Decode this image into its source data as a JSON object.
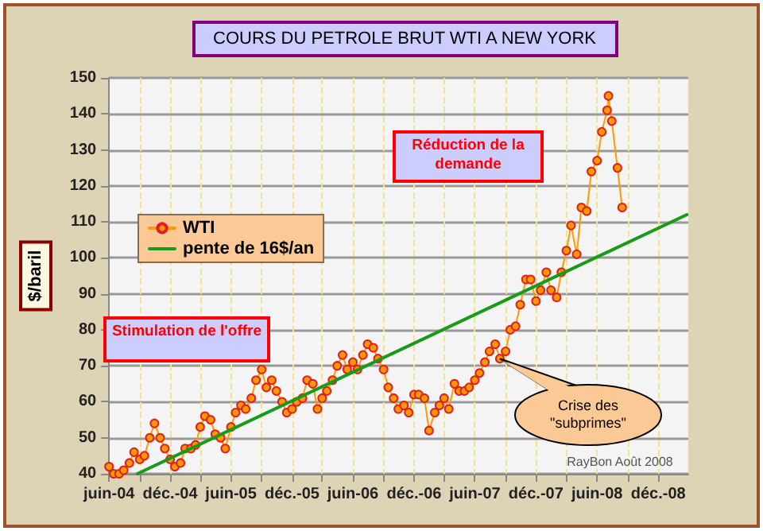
{
  "chart_data": {
    "type": "line",
    "title": "COURS DU PETROLE BRUT WTI A NEW YORK",
    "ylabel": "$/baril",
    "xlim": [
      "2004-06-01",
      "2009-03-01"
    ],
    "ylim": [
      40,
      150
    ],
    "yticks": [
      40,
      50,
      60,
      70,
      80,
      90,
      100,
      110,
      120,
      130,
      140,
      150
    ],
    "xticks": [
      {
        "value": "2004-06-01",
        "label": "juin-04"
      },
      {
        "value": "2004-09-01",
        "label": null
      },
      {
        "value": "2004-12-01",
        "label": "déc.-04"
      },
      {
        "value": "2005-03-01",
        "label": null
      },
      {
        "value": "2005-06-01",
        "label": "juin-05"
      },
      {
        "value": "2005-09-01",
        "label": null
      },
      {
        "value": "2005-12-01",
        "label": "déc.-05"
      },
      {
        "value": "2006-03-01",
        "label": null
      },
      {
        "value": "2006-06-01",
        "label": "juin-06"
      },
      {
        "value": "2006-09-01",
        "label": null
      },
      {
        "value": "2006-12-01",
        "label": "déc.-06"
      },
      {
        "value": "2007-03-01",
        "label": null
      },
      {
        "value": "2007-06-01",
        "label": "juin-07"
      },
      {
        "value": "2007-09-01",
        "label": null
      },
      {
        "value": "2007-12-01",
        "label": "déc.-07"
      },
      {
        "value": "2008-03-01",
        "label": null
      },
      {
        "value": "2008-06-01",
        "label": "juin-08"
      },
      {
        "value": "2008-09-01",
        "label": null
      },
      {
        "value": "2008-12-01",
        "label": "déc.-08"
      }
    ],
    "grid": true,
    "legend": "left",
    "series": [
      {
        "name": "WTI",
        "color": "#ff9900",
        "marker": "circle",
        "x": [
          "2004-06-01",
          "2004-06-15",
          "2004-07-01",
          "2004-07-15",
          "2004-08-01",
          "2004-08-15",
          "2004-09-01",
          "2004-09-15",
          "2004-10-01",
          "2004-10-15",
          "2004-11-01",
          "2004-11-15",
          "2004-12-01",
          "2004-12-15",
          "2005-01-01",
          "2005-01-15",
          "2005-02-01",
          "2005-02-15",
          "2005-03-01",
          "2005-03-15",
          "2005-04-01",
          "2005-04-15",
          "2005-05-01",
          "2005-05-15",
          "2005-06-01",
          "2005-06-15",
          "2005-07-01",
          "2005-07-15",
          "2005-08-01",
          "2005-08-15",
          "2005-09-01",
          "2005-09-15",
          "2005-10-01",
          "2005-10-15",
          "2005-11-01",
          "2005-11-15",
          "2005-12-01",
          "2005-12-15",
          "2006-01-01",
          "2006-01-15",
          "2006-02-01",
          "2006-02-15",
          "2006-03-01",
          "2006-03-15",
          "2006-04-01",
          "2006-04-15",
          "2006-05-01",
          "2006-05-15",
          "2006-06-01",
          "2006-06-15",
          "2006-07-01",
          "2006-07-15",
          "2006-08-01",
          "2006-08-15",
          "2006-09-01",
          "2006-09-15",
          "2006-10-01",
          "2006-10-15",
          "2006-11-01",
          "2006-11-15",
          "2006-12-01",
          "2006-12-15",
          "2007-01-01",
          "2007-01-15",
          "2007-02-01",
          "2007-02-15",
          "2007-03-01",
          "2007-03-15",
          "2007-04-01",
          "2007-04-15",
          "2007-05-01",
          "2007-05-15",
          "2007-06-01",
          "2007-06-15",
          "2007-07-01",
          "2007-07-15",
          "2007-08-01",
          "2007-08-15",
          "2007-09-01",
          "2007-09-15",
          "2007-10-01",
          "2007-10-15",
          "2007-11-01",
          "2007-11-15",
          "2007-12-01",
          "2007-12-15",
          "2008-01-01",
          "2008-01-15",
          "2008-02-01",
          "2008-02-15",
          "2008-03-01",
          "2008-03-15",
          "2008-04-01",
          "2008-04-15",
          "2008-05-01",
          "2008-05-15",
          "2008-06-01",
          "2008-06-15",
          "2008-07-01",
          "2008-07-05",
          "2008-07-15",
          "2008-08-01",
          "2008-08-15"
        ],
        "values": [
          42,
          40,
          40,
          41,
          43,
          46,
          44,
          45,
          50,
          54,
          50,
          47,
          44,
          42,
          43,
          47,
          47,
          48,
          53,
          56,
          55,
          51,
          50,
          47,
          53,
          57,
          59,
          58,
          61,
          66,
          69,
          64,
          66,
          63,
          60,
          57,
          58,
          60,
          61,
          66,
          65,
          58,
          61,
          63,
          66,
          70,
          73,
          69,
          71,
          69,
          73,
          76,
          75,
          72,
          69,
          64,
          61,
          58,
          59,
          57,
          62,
          62,
          61,
          52,
          57,
          59,
          61,
          58,
          65,
          63,
          63,
          64,
          66,
          68,
          71,
          74,
          76,
          72,
          74,
          80,
          81,
          87,
          94,
          94,
          88,
          91,
          96,
          91,
          89,
          96,
          102,
          109,
          101,
          114,
          113,
          124,
          127,
          135,
          141,
          145,
          138,
          125,
          114
        ]
      },
      {
        "name": "pente de 16$/an",
        "color": "#1a9a1a",
        "marker": "none",
        "x": [
          "2004-08-25",
          "2009-02-25"
        ],
        "values": [
          40,
          112
        ]
      }
    ],
    "annotations": [
      "Réduction de la demande",
      "Stimulation de l'offre",
      {
        "text": "Crise des \"subprimes\"",
        "x": "2007-08-15",
        "y": 72
      },
      "RayBon Août 2008"
    ]
  }
}
